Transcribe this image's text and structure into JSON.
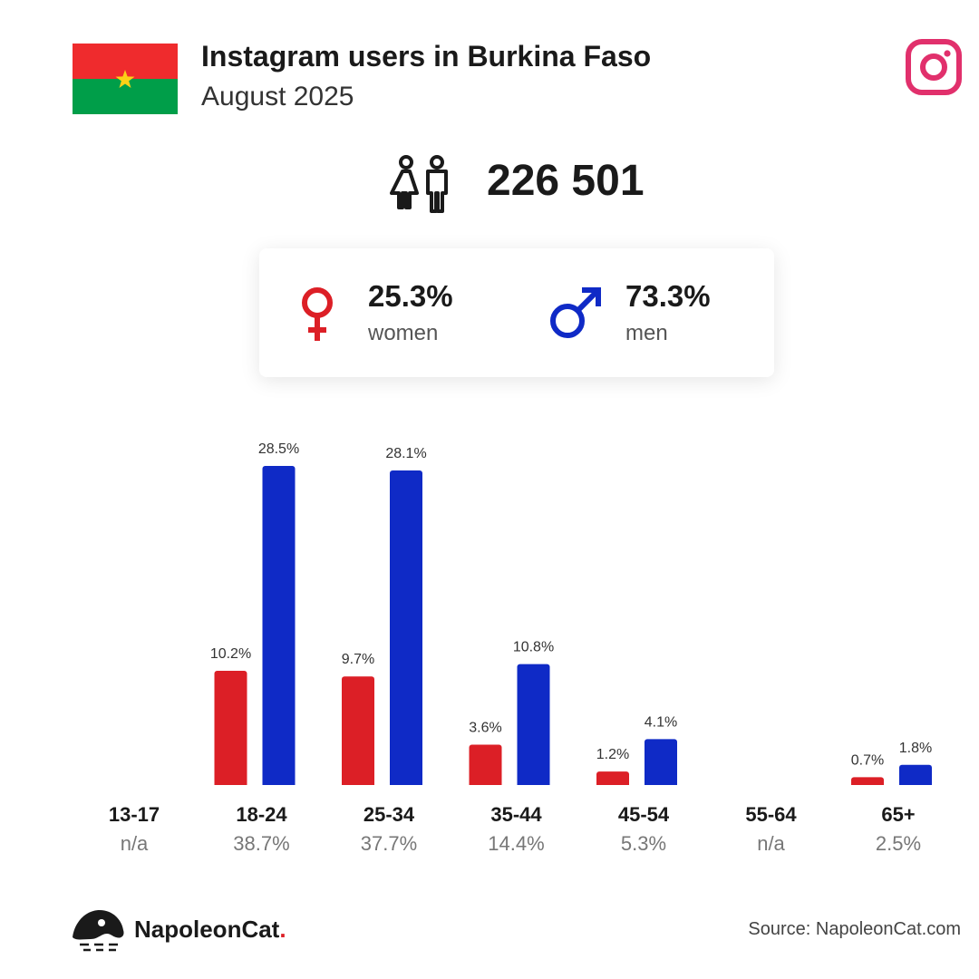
{
  "header": {
    "title": "Instagram users in Burkina Faso",
    "subtitle": "August 2025",
    "flag_colors": {
      "top": "#ef2b2d",
      "bottom": "#009e49",
      "star": "#fcd116"
    },
    "brand_icon": "instagram-icon",
    "brand_color": "#e1306c"
  },
  "summary": {
    "total": "226 501",
    "people_icon": "people-icon"
  },
  "gender": {
    "women": {
      "pct": "25.3%",
      "label": "women",
      "color": "#dc1f26",
      "icon": "female-icon"
    },
    "men": {
      "pct": "73.3%",
      "label": "men",
      "color": "#0f2ac6",
      "icon": "male-icon"
    }
  },
  "chart_data": {
    "type": "bar",
    "categories": [
      "13-17",
      "18-24",
      "25-34",
      "35-44",
      "45-54",
      "55-64",
      "65+"
    ],
    "category_totals": [
      "n/a",
      "38.7%",
      "37.7%",
      "14.4%",
      "5.3%",
      "n/a",
      "2.5%"
    ],
    "series": [
      {
        "values": [
          null,
          10.2,
          9.7,
          3.6,
          1.2,
          null,
          0.7
        ],
        "labels": [
          "",
          "10.2%",
          "9.7%",
          "3.6%",
          "1.2%",
          "",
          "0.7%"
        ],
        "color": "#dc1f26"
      },
      {
        "values": [
          null,
          28.5,
          28.1,
          10.8,
          4.1,
          null,
          1.8
        ],
        "labels": [
          "",
          "28.5%",
          "28.1%",
          "10.8%",
          "4.1%",
          "",
          "1.8%"
        ],
        "color": "#0f2ac6"
      }
    ],
    "ylim": [
      0,
      28.5
    ],
    "grid": false,
    "legend": "none"
  },
  "footer": {
    "brand": "NapoleonCat",
    "brand_dot": ".",
    "source": "Source: NapoleonCat.com"
  }
}
